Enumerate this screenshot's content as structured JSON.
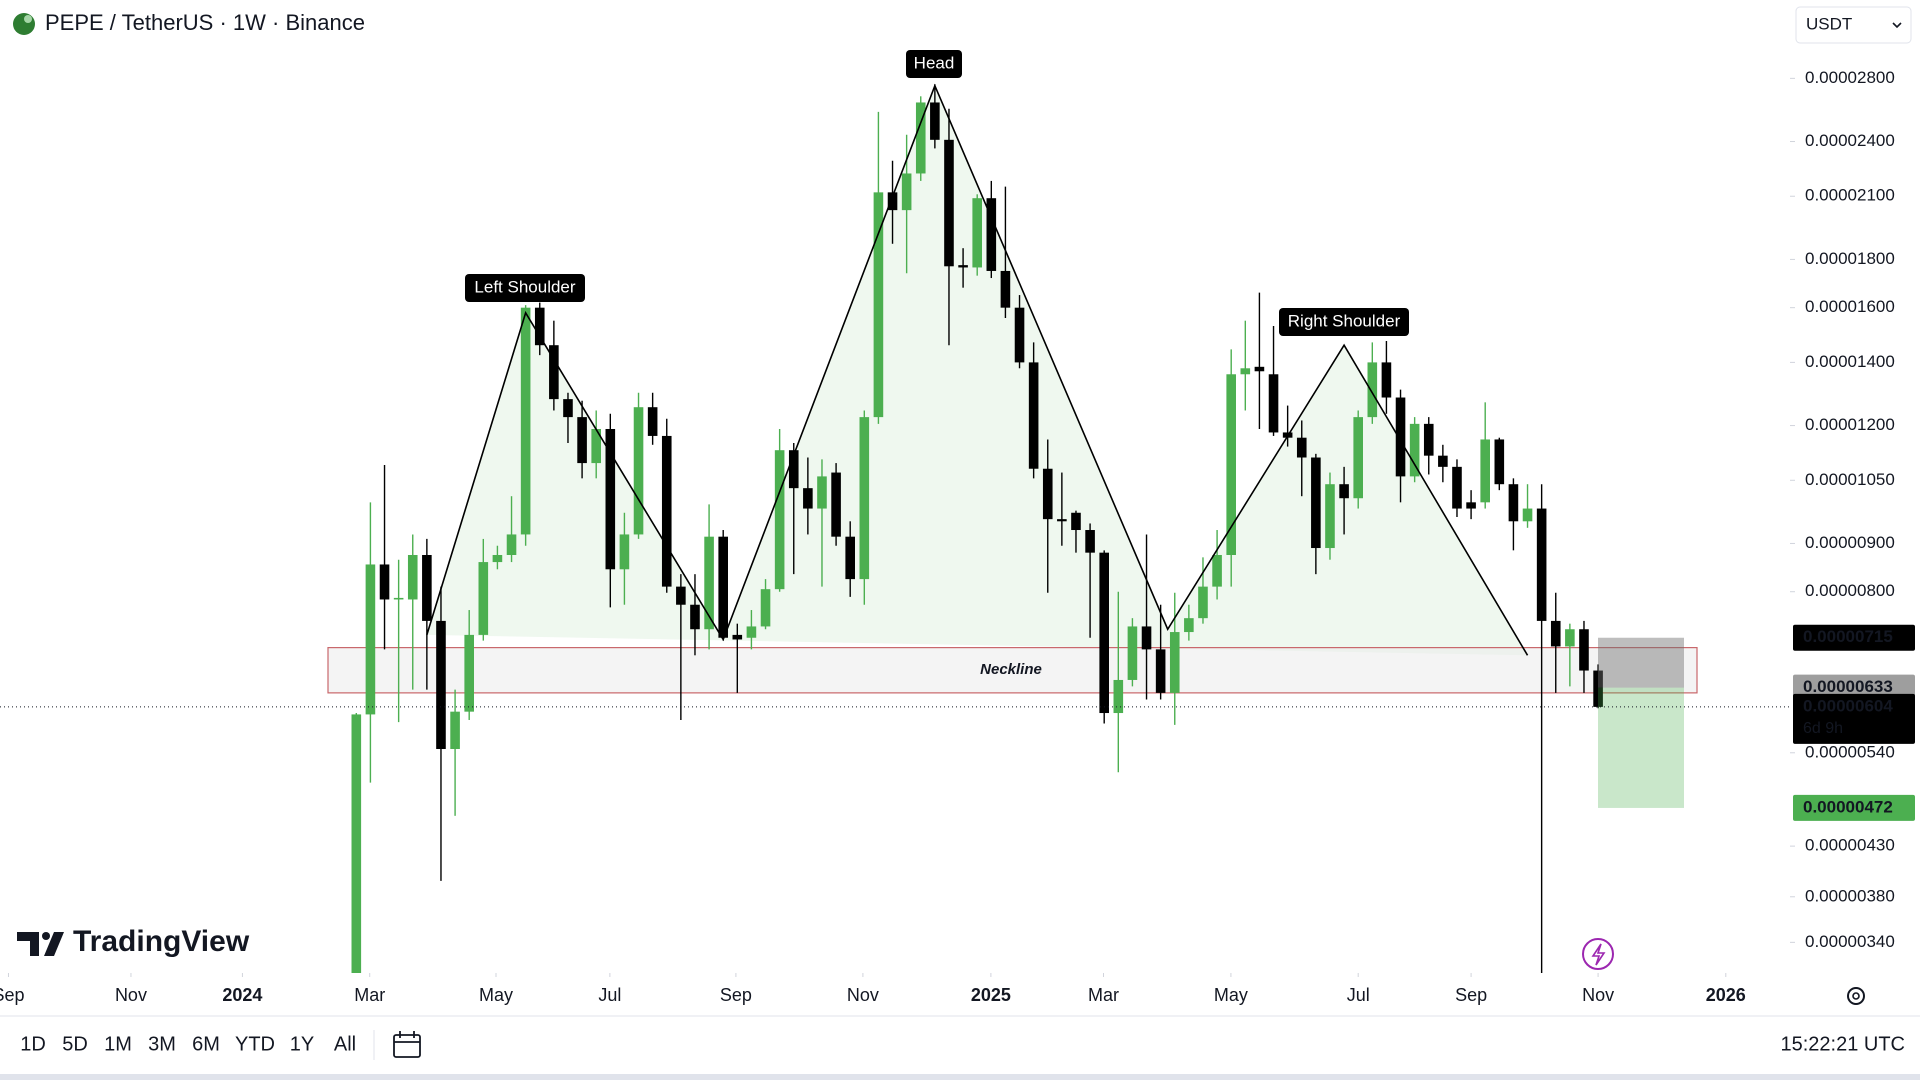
{
  "header": {
    "symbol_title": "PEPE / TetherUS · 1W · Binance",
    "currency": "USDT"
  },
  "branding": "TradingView",
  "toolbar": {
    "ranges": [
      "1D",
      "5D",
      "1M",
      "3M",
      "6M",
      "YTD",
      "1Y",
      "All"
    ],
    "clock": "15:22:21 UTC"
  },
  "chart_data": {
    "type": "candlestick",
    "up_color": "#4caf50",
    "down_color": "#000000",
    "log_scale": true,
    "grid": false,
    "open": [
      3e-06,
      5.93e-06,
      8.55e-06,
      7.85e-06,
      7.85e-06,
      8.75e-06,
      7.45e-06,
      5.45e-06,
      5.97e-06,
      7.2e-06,
      8.6e-06,
      8.75e-06,
      9.2e-06,
      1.6e-05,
      1.46e-05,
      1.28e-05,
      1.225e-05,
      1.095e-05,
      1.19e-05,
      8.45e-06,
      9.2e-06,
      1.255e-05,
      1.17e-05,
      8.1e-06,
      7.75e-06,
      7.3e-06,
      9.15e-06,
      7.2e-06,
      7.15e-06,
      7.35e-06,
      8.05e-06,
      1.13e-05,
      1.03e-05,
      9.8e-06,
      1.07e-05,
      9.15e-06,
      8.25e-06,
      1.225e-05,
      2.12e-05,
      2.03e-05,
      2.22e-05,
      2.64e-05,
      2.41e-05,
      1.775e-05,
      1.765e-05,
      2.09e-05,
      1.75e-05,
      1.6e-05,
      1.4e-05,
      1.08e-05,
      9.55e-06,
      9.7e-06,
      9.3e-06,
      8.8e-06,
      5.95e-06,
      6.45e-06,
      7.35e-06,
      6.95e-06,
      6.25e-06,
      7.25e-06,
      7.5e-06,
      8.1e-06,
      8.75e-06,
      1.36e-05,
      1.385e-05,
      1.36e-05,
      1.18e-05,
      1.165e-05,
      1.11e-05,
      8.9e-06,
      1.04e-05,
      1.005e-05,
      1.225e-05,
      1.4e-05,
      1.285e-05,
      1.06e-05,
      1.205e-05,
      1.115e-05,
      1.085e-05,
      9.95e-06,
      9.95e-06,
      1.16e-05,
      1.04e-05,
      9.5e-06,
      9.8e-06,
      7.45e-06,
      7e-06,
      7.3e-06,
      6.6e-06
    ],
    "high": [
      5.95e-06,
      9.95e-06,
      1.09e-05,
      8.65e-06,
      9.2e-06,
      9.1e-06,
      8.1e-06,
      6.3e-06,
      7.65e-06,
      9.1e-06,
      8.95e-06,
      1.01e-05,
      1.61e-05,
      1.62e-05,
      1.55e-05,
      1.3e-05,
      1.275e-05,
      1.245e-05,
      1.235e-05,
      9.7e-06,
      1.3e-05,
      1.3e-05,
      1.22e-05,
      8.35e-06,
      8.35e-06,
      9.9e-06,
      9.3e-06,
      7.4e-06,
      7.65e-06,
      8.25e-06,
      1.19e-05,
      1.15e-05,
      1.11e-05,
      1.105e-05,
      1.095e-05,
      9.5e-06,
      1.245e-05,
      2.58e-05,
      2.29e-05,
      2.44e-05,
      2.68e-05,
      2.76e-05,
      2.6e-05,
      1.85e-05,
      2.11e-05,
      2.18e-05,
      2.15e-05,
      1.65e-05,
      1.47e-05,
      1.16e-05,
      1.07e-05,
      9.75e-06,
      9.45e-06,
      8.85e-06,
      8e-06,
      7.5e-06,
      9.2e-06,
      7.75e-06,
      7.98e-06,
      7.75e-06,
      8.7e-06,
      9.3e-06,
      1.445e-05,
      1.55e-05,
      1.66e-05,
      1.53e-05,
      1.26e-05,
      1.215e-05,
      1.12e-05,
      1.07e-05,
      1.085e-05,
      1.245e-05,
      1.47e-05,
      1.475e-05,
      1.31e-05,
      1.225e-05,
      1.225e-05,
      1.145e-05,
      1.105e-05,
      1.025e-05,
      1.27e-05,
      1.165e-05,
      1.055e-05,
      1.04e-05,
      1.04e-05,
      7.98e-06,
      7.4e-06,
      7.45e-06,
      6.7e-06
    ],
    "low": [
      2.9e-06,
      5.02e-06,
      6.95e-06,
      5.82e-06,
      6.3e-06,
      6.3e-06,
      3.95e-06,
      4.63e-06,
      5.85e-06,
      7.1e-06,
      8.45e-06,
      8.6e-06,
      8.95e-06,
      1.425e-05,
      1.245e-05,
      1.15e-05,
      1.055e-05,
      1.055e-05,
      7.7e-06,
      7.75e-06,
      9.1e-06,
      1.145e-05,
      7.98e-06,
      5.85e-06,
      6.85e-06,
      6.95e-06,
      7.1e-06,
      6.25e-06,
      6.95e-06,
      7.3e-06,
      8e-06,
      8.35e-06,
      9.2e-06,
      8.1e-06,
      8.95e-06,
      7.9e-06,
      7.75e-06,
      1.205e-05,
      1.87e-05,
      1.74e-05,
      2.18e-05,
      2.36e-05,
      1.46e-05,
      1.68e-05,
      1.73e-05,
      1.72e-05,
      1.56e-05,
      1.38e-05,
      1.055e-05,
      7.98e-06,
      8.95e-06,
      8.8e-06,
      7.15e-06,
      5.8e-06,
      5.15e-06,
      6.35e-06,
      6.15e-06,
      6.15e-06,
      5.78e-06,
      7.1e-06,
      7.4e-06,
      7.85e-06,
      8.1e-06,
      1.245e-05,
      1.19e-05,
      1.17e-05,
      1.14e-05,
      1.01e-05,
      8.35e-06,
      8.65e-06,
      9.2e-06,
      9.8e-06,
      1.205e-05,
      1.235e-05,
      9.95e-06,
      1.045e-05,
      1.065e-05,
      1.045e-05,
      9.6e-06,
      9.55e-06,
      9.8e-06,
      1.025e-05,
      8.85e-06,
      9.35e-06,
      3e-06,
      6.25e-06,
      6.35e-06,
      6.25e-06,
      6.02e-06
    ],
    "close": [
      5.93e-06,
      8.55e-06,
      7.85e-06,
      7.88e-06,
      8.75e-06,
      7.45e-06,
      5.45e-06,
      5.97e-06,
      7.2e-06,
      8.6e-06,
      8.75e-06,
      9.2e-06,
      1.6e-05,
      1.46e-05,
      1.28e-05,
      1.225e-05,
      1.095e-05,
      1.19e-05,
      8.45e-06,
      9.2e-06,
      1.255e-05,
      1.17e-05,
      8.1e-06,
      7.75e-06,
      7.3e-06,
      9.15e-06,
      7.15e-06,
      7.12e-06,
      7.35e-06,
      8.05e-06,
      1.13e-05,
      1.03e-05,
      9.8e-06,
      1.06e-05,
      9.15e-06,
      8.25e-06,
      1.225e-05,
      2.12e-05,
      2.03e-05,
      2.22e-05,
      2.64e-05,
      2.41e-05,
      1.77e-05,
      1.765e-05,
      2.09e-05,
      1.75e-05,
      1.6e-05,
      1.4e-05,
      1.08e-05,
      9.55e-06,
      9.5e-06,
      9.3e-06,
      8.8e-06,
      5.95e-06,
      6.45e-06,
      7.35e-06,
      6.95e-06,
      6.25e-06,
      7.25e-06,
      7.5e-06,
      8.1e-06,
      8.75e-06,
      1.36e-05,
      1.38e-05,
      1.37e-05,
      1.18e-05,
      1.165e-05,
      1.11e-05,
      8.9e-06,
      1.04e-05,
      1.005e-05,
      1.225e-05,
      1.4e-05,
      1.285e-05,
      1.06e-05,
      1.205e-05,
      1.115e-05,
      1.085e-05,
      9.8e-06,
      9.8e-06,
      1.16e-05,
      1.04e-05,
      9.5e-06,
      9.8e-06,
      7.45e-06,
      7e-06,
      7.3e-06,
      6.6e-06,
      6.04e-06
    ],
    "xlim": [
      -25.25,
      101.6
    ],
    "xticks": [
      {
        "value": -24.65,
        "label": "Sep"
      },
      {
        "value": -15.97,
        "label": "Nov"
      },
      {
        "value": -8.07,
        "label": "2024"
      },
      {
        "value": 0.95,
        "label": "Mar"
      },
      {
        "value": 9.9,
        "label": "May"
      },
      {
        "value": 17.97,
        "label": "Jul"
      },
      {
        "value": 26.9,
        "label": "Sep"
      },
      {
        "value": 35.9,
        "label": "Nov"
      },
      {
        "value": 44.97,
        "label": "2025"
      },
      {
        "value": 52.95,
        "label": "Mar"
      },
      {
        "value": 61.98,
        "label": "May"
      },
      {
        "value": 71.0,
        "label": "Jul"
      },
      {
        "value": 79.0,
        "label": "Sep"
      },
      {
        "value": 88.0,
        "label": "Nov"
      },
      {
        "value": 97.05,
        "label": "2026"
      }
    ],
    "ylim": [
      3.155e-06,
      3.39e-05
    ],
    "yticks": [
      {
        "value": 2.8e-05,
        "label": "0.00002800"
      },
      {
        "value": 2.4e-05,
        "label": "0.00002400"
      },
      {
        "value": 2.1e-05,
        "label": "0.00002100"
      },
      {
        "value": 1.8e-05,
        "label": "0.00001800"
      },
      {
        "value": 1.6e-05,
        "label": "0.00001600"
      },
      {
        "value": 1.4e-05,
        "label": "0.00001400"
      },
      {
        "value": 1.2e-05,
        "label": "0.00001200"
      },
      {
        "value": 1.05e-05,
        "label": "0.00001050"
      },
      {
        "value": 9e-06,
        "label": "0.00000900"
      },
      {
        "value": 8e-06,
        "label": "0.00000800"
      },
      {
        "value": 5.4e-06,
        "label": "0.00000540"
      },
      {
        "value": 4.3e-06,
        "label": "0.00000430"
      },
      {
        "value": 3.8e-06,
        "label": "0.00000380"
      },
      {
        "value": 3.4e-06,
        "label": "0.00000340"
      }
    ],
    "last_price": 6.04e-06,
    "countdown": "6d 9h",
    "annotations": [
      "Left Shoulder",
      "Head",
      "Right Shoulder"
    ],
    "pattern": {
      "x": [
        5,
        12,
        26,
        41,
        57.5,
        70,
        83
      ],
      "y": [
        7.2e-06,
        1.58e-05,
        7.12e-06,
        2.75e-05,
        7.3e-06,
        1.46e-05,
        6.85e-06
      ],
      "color": "#000000"
    },
    "neckline_zone": {
      "label": "Neckline",
      "top": 6.98e-06,
      "bottom": 6.25e-06
    },
    "position": {
      "stop": 7.15e-06,
      "entry": 6.33e-06,
      "target": 4.72e-06
    }
  }
}
